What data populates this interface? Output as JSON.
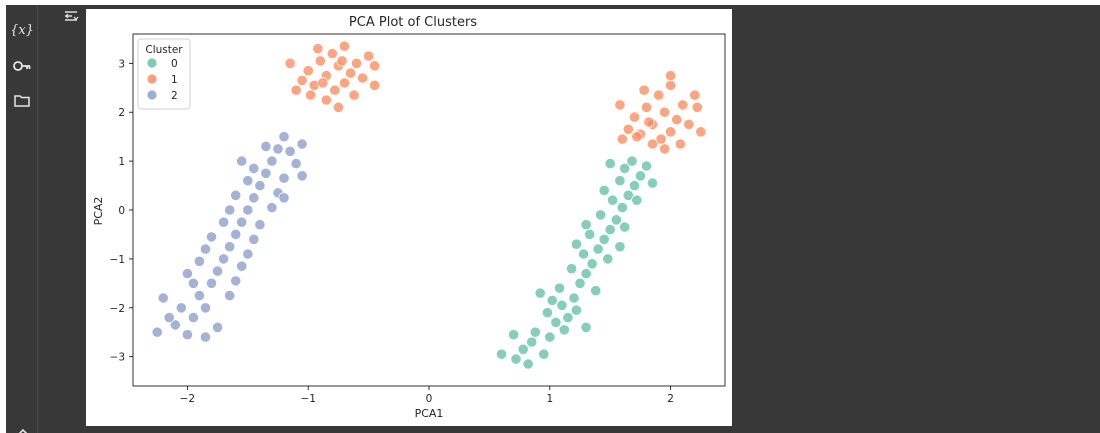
{
  "sidebar": {
    "icons": [
      {
        "name": "variables-icon",
        "glyph": "{x}"
      },
      {
        "name": "secrets-key-icon",
        "glyph": "key"
      },
      {
        "name": "files-folder-icon",
        "glyph": "folder"
      }
    ]
  },
  "colors": {
    "cluster_0": "#66c2a5",
    "cluster_1": "#fc8d62",
    "cluster_2": "#8da0cb",
    "dark_ui_background": "#383838"
  },
  "chart_data": {
    "type": "scatter",
    "title": "PCA Plot of Clusters",
    "xlabel": "PCA1",
    "ylabel": "PCA2",
    "xlim": [
      -2.45,
      2.45
    ],
    "ylim": [
      -3.6,
      3.6
    ],
    "xticks": [
      -2,
      -1,
      0,
      1,
      2
    ],
    "xtick_labels": [
      "−2",
      "−1",
      "0",
      "1",
      "2"
    ],
    "yticks": [
      -3,
      -2,
      -1,
      0,
      1,
      2,
      3
    ],
    "ytick_labels": [
      "−3",
      "−2",
      "−1",
      "0",
      "1",
      "2",
      "3"
    ],
    "grid": false,
    "legend": {
      "title": "Cluster",
      "placement": "upper-left"
    },
    "series": [
      {
        "name": "0",
        "color": "#66c2a5",
        "points": [
          [
            0.72,
            -3.05
          ],
          [
            0.78,
            -2.85
          ],
          [
            0.85,
            -2.7
          ],
          [
            0.95,
            -2.95
          ],
          [
            0.88,
            -2.5
          ],
          [
            1.0,
            -2.6
          ],
          [
            1.05,
            -2.3
          ],
          [
            0.98,
            -2.1
          ],
          [
            1.1,
            -1.95
          ],
          [
            1.15,
            -2.2
          ],
          [
            1.2,
            -1.8
          ],
          [
            1.08,
            -1.6
          ],
          [
            1.25,
            -1.5
          ],
          [
            1.3,
            -1.3
          ],
          [
            1.18,
            -1.2
          ],
          [
            1.35,
            -1.1
          ],
          [
            1.28,
            -0.9
          ],
          [
            1.4,
            -0.8
          ],
          [
            1.45,
            -0.6
          ],
          [
            1.33,
            -0.5
          ],
          [
            1.5,
            -0.4
          ],
          [
            1.55,
            -0.2
          ],
          [
            1.42,
            -0.1
          ],
          [
            1.6,
            0.05
          ],
          [
            1.52,
            0.2
          ],
          [
            1.65,
            0.3
          ],
          [
            1.7,
            0.5
          ],
          [
            1.58,
            0.6
          ],
          [
            1.75,
            0.7
          ],
          [
            1.62,
            0.85
          ],
          [
            1.68,
            1.0
          ],
          [
            1.8,
            0.9
          ],
          [
            0.6,
            -2.95
          ],
          [
            0.82,
            -3.15
          ],
          [
            1.12,
            -2.45
          ],
          [
            1.22,
            -2.05
          ],
          [
            1.02,
            -1.85
          ],
          [
            0.92,
            -1.7
          ],
          [
            1.38,
            -1.65
          ],
          [
            1.48,
            -1.0
          ],
          [
            1.22,
            -0.7
          ],
          [
            1.58,
            -0.75
          ],
          [
            1.3,
            -0.3
          ],
          [
            1.62,
            -0.35
          ],
          [
            1.72,
            0.2
          ],
          [
            1.45,
            0.4
          ],
          [
            1.85,
            0.55
          ],
          [
            1.5,
            0.95
          ],
          [
            0.7,
            -2.55
          ],
          [
            1.3,
            -2.4
          ]
        ]
      },
      {
        "name": "1",
        "color": "#fc8d62",
        "points": [
          [
            -0.95,
            2.55
          ],
          [
            -0.85,
            2.75
          ],
          [
            -0.75,
            2.95
          ],
          [
            -0.9,
            3.05
          ],
          [
            -0.7,
            2.6
          ],
          [
            -0.65,
            2.8
          ],
          [
            -1.0,
            2.85
          ],
          [
            -0.8,
            3.2
          ],
          [
            -0.6,
            3.0
          ],
          [
            -1.05,
            2.65
          ],
          [
            -0.78,
            2.45
          ],
          [
            -0.92,
            3.3
          ],
          [
            -0.7,
            3.35
          ],
          [
            -0.55,
            2.7
          ],
          [
            -1.1,
            2.45
          ],
          [
            -0.62,
            2.35
          ],
          [
            -0.45,
            2.95
          ],
          [
            -0.85,
            2.25
          ],
          [
            -1.15,
            3.0
          ],
          [
            -0.5,
            3.15
          ],
          [
            -0.98,
            2.35
          ],
          [
            -0.75,
            2.1
          ],
          [
            -0.88,
            2.6
          ],
          [
            -0.72,
            3.05
          ],
          [
            -0.45,
            2.55
          ],
          [
            1.75,
            1.55
          ],
          [
            1.85,
            1.75
          ],
          [
            1.95,
            2.0
          ],
          [
            1.8,
            2.1
          ],
          [
            2.0,
            1.6
          ],
          [
            2.05,
            1.85
          ],
          [
            1.7,
            1.9
          ],
          [
            1.9,
            2.35
          ],
          [
            2.1,
            2.15
          ],
          [
            1.65,
            1.65
          ],
          [
            1.92,
            1.45
          ],
          [
            1.78,
            2.45
          ],
          [
            2.0,
            2.55
          ],
          [
            2.15,
            1.75
          ],
          [
            1.6,
            1.45
          ],
          [
            2.08,
            1.35
          ],
          [
            2.22,
            2.1
          ],
          [
            1.85,
            1.35
          ],
          [
            1.58,
            2.15
          ],
          [
            2.2,
            2.35
          ],
          [
            1.72,
            1.5
          ],
          [
            1.95,
            1.25
          ],
          [
            1.82,
            1.8
          ],
          [
            2.0,
            2.75
          ],
          [
            2.25,
            1.6
          ]
        ]
      },
      {
        "name": "2",
        "color": "#8da0cb",
        "points": [
          [
            -2.25,
            -2.5
          ],
          [
            -2.1,
            -2.35
          ],
          [
            -2.0,
            -2.55
          ],
          [
            -1.95,
            -2.2
          ],
          [
            -1.85,
            -2.0
          ],
          [
            -1.9,
            -1.75
          ],
          [
            -1.8,
            -1.5
          ],
          [
            -1.75,
            -1.25
          ],
          [
            -1.7,
            -1.0
          ],
          [
            -1.65,
            -0.75
          ],
          [
            -1.6,
            -0.5
          ],
          [
            -1.55,
            -0.25
          ],
          [
            -1.5,
            0.0
          ],
          [
            -1.45,
            0.25
          ],
          [
            -1.4,
            0.5
          ],
          [
            -1.35,
            0.75
          ],
          [
            -1.3,
            1.0
          ],
          [
            -1.25,
            1.25
          ],
          [
            -1.2,
            1.5
          ],
          [
            -1.15,
            1.2
          ],
          [
            -1.1,
            0.95
          ],
          [
            -1.05,
            1.35
          ],
          [
            -2.05,
            -2.0
          ],
          [
            -2.15,
            -2.2
          ],
          [
            -1.95,
            -1.5
          ],
          [
            -2.0,
            -1.3
          ],
          [
            -1.9,
            -1.05
          ],
          [
            -1.85,
            -0.8
          ],
          [
            -1.8,
            -0.55
          ],
          [
            -1.7,
            -0.25
          ],
          [
            -1.65,
            0.0
          ],
          [
            -1.6,
            0.3
          ],
          [
            -1.5,
            0.6
          ],
          [
            -1.45,
            0.85
          ],
          [
            -1.55,
            1.0
          ],
          [
            -1.35,
            1.3
          ],
          [
            -1.65,
            -1.75
          ],
          [
            -1.6,
            -1.45
          ],
          [
            -1.55,
            -1.15
          ],
          [
            -1.5,
            -0.9
          ],
          [
            -1.45,
            -0.6
          ],
          [
            -1.4,
            -0.3
          ],
          [
            -1.3,
            0.05
          ],
          [
            -1.25,
            0.35
          ],
          [
            -1.2,
            0.65
          ],
          [
            -1.75,
            -2.4
          ],
          [
            -1.85,
            -2.6
          ],
          [
            -2.2,
            -1.8
          ],
          [
            -1.2,
            0.25
          ],
          [
            -1.05,
            0.7
          ]
        ]
      }
    ]
  }
}
